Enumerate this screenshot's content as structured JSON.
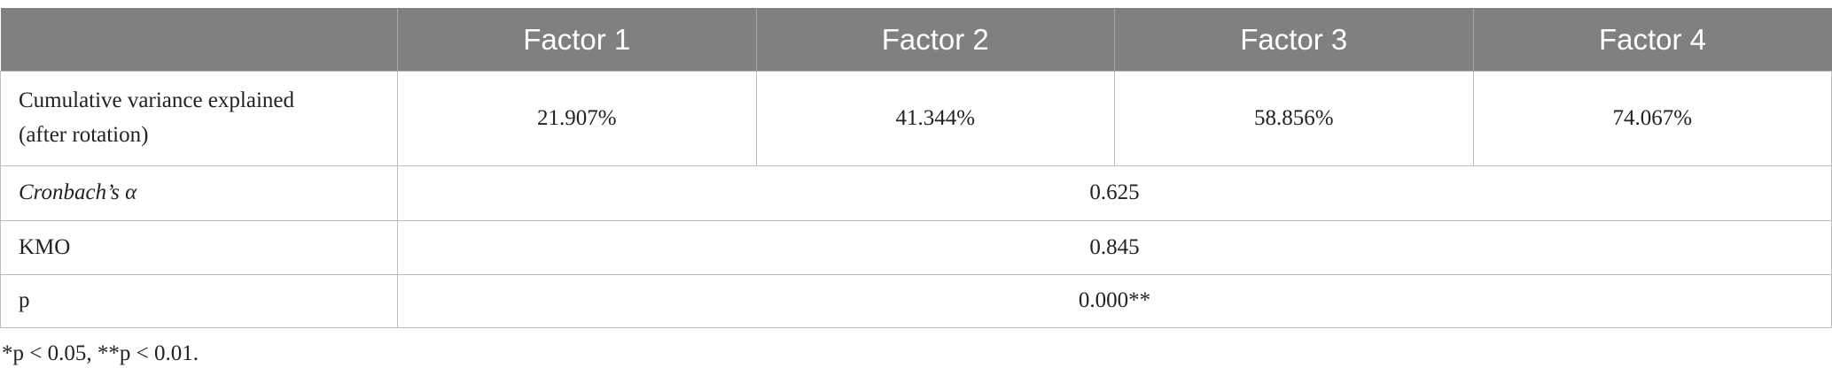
{
  "table": {
    "columns": [
      "Factor 1",
      "Factor 2",
      "Factor 3",
      "Factor 4"
    ],
    "rows": [
      {
        "label": "Cumulative variance explained (after rotation)",
        "values": [
          "21.907%",
          "41.344%",
          "58.856%",
          "74.067%"
        ]
      },
      {
        "label": "Cronbach’s α",
        "values": [
          "0.625"
        ]
      },
      {
        "label": "KMO",
        "values": [
          "0.845"
        ]
      },
      {
        "label": "p",
        "values": [
          "0.000**"
        ]
      }
    ],
    "footnote": "*p < 0.05, **p < 0.01."
  }
}
